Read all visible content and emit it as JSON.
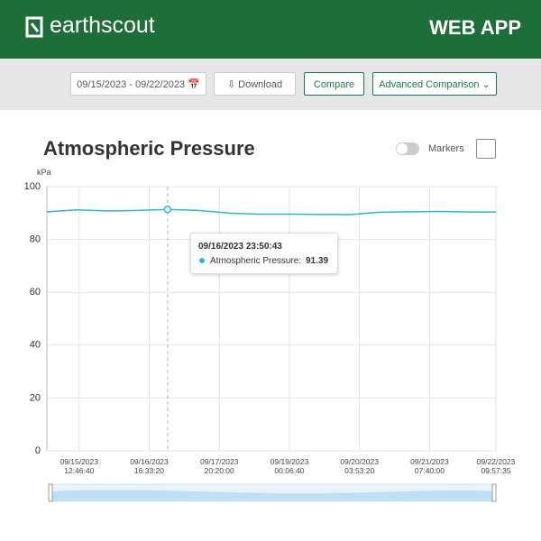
{
  "header": {
    "brand": "earthscout",
    "app": "WEB APP"
  },
  "toolbar": {
    "date_range": "09/15/2023 - 09/22/2023",
    "download": "Download",
    "compare": "Compare",
    "advanced": "Advanced Comparison"
  },
  "markers_label": "Markers",
  "chart_data": {
    "type": "line",
    "title": "Atmospheric Pressure",
    "y_label": "kPa",
    "x": [
      "09/15/2023 00:00:00",
      "09/15/2023 12:00:00",
      "09/16/2023 00:00:00",
      "09/16/2023 12:00:00",
      "09/16/2023 23:50:43",
      "09/17/2023 12:00:00",
      "09/18/2023 00:00:00",
      "09/18/2023 12:00:00",
      "09/19/2023 00:00:00",
      "09/19/2023 12:00:00",
      "09/20/2023 00:00:00",
      "09/20/2023 12:00:00",
      "09/21/2023 00:00:00",
      "09/21/2023 12:00:00",
      "09/22/2023 00:00:00",
      "09/22/2023 09:57:35"
    ],
    "series": [
      {
        "name": "Atmospheric Pressure",
        "color": "#29b6d8",
        "values": [
          90.5,
          91.2,
          90.8,
          91.0,
          91.39,
          91.0,
          90.0,
          89.6,
          89.6,
          89.5,
          89.4,
          90.3,
          90.5,
          90.6,
          90.4,
          90.4
        ]
      }
    ],
    "xlim": [
      "09/15/2023 00:00:00",
      "09/22/2023 09:57:35"
    ],
    "xticks": [
      "09/15/2023 12:46:40",
      "09/16/2023 16:33:20",
      "09/17/2023 20:20:00",
      "09/19/2023 00:06:40",
      "09/20/2023 03:53:20",
      "09/21/2023 07:40:00",
      "09/22/2023 09:57:35"
    ],
    "ylim": [
      0,
      100
    ],
    "yticks": [
      0,
      20,
      40,
      60,
      80,
      100
    ],
    "grid": true,
    "tooltip": {
      "x": "09/16/2023 23:50:43",
      "label": "Atmospheric Pressure:",
      "value": 91.39
    }
  }
}
